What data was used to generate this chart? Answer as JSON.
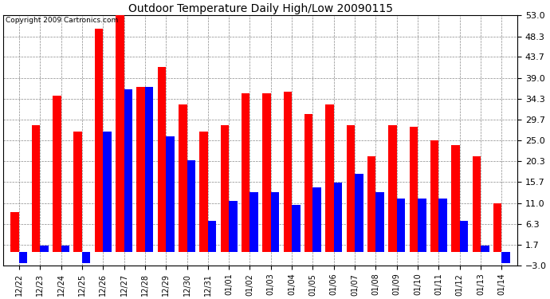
{
  "title": "Outdoor Temperature Daily High/Low 20090115",
  "copyright": "Copyright 2009 Cartronics.com",
  "dates": [
    "12/22",
    "12/23",
    "12/24",
    "12/25",
    "12/26",
    "12/27",
    "12/28",
    "12/29",
    "12/30",
    "12/31",
    "01/01",
    "01/02",
    "01/03",
    "01/04",
    "01/05",
    "01/06",
    "01/07",
    "01/08",
    "01/09",
    "01/10",
    "01/11",
    "01/12",
    "01/13",
    "01/14"
  ],
  "highs": [
    9.0,
    28.5,
    35.0,
    27.0,
    50.0,
    53.0,
    37.0,
    41.5,
    33.0,
    27.0,
    28.5,
    35.5,
    35.5,
    36.0,
    31.0,
    33.0,
    28.5,
    21.5,
    28.5,
    28.0,
    25.0,
    24.0,
    21.5,
    11.0
  ],
  "lows": [
    -2.5,
    1.5,
    1.5,
    -2.5,
    27.0,
    36.5,
    37.0,
    26.0,
    20.5,
    7.0,
    11.5,
    13.5,
    13.5,
    10.5,
    14.5,
    15.5,
    17.5,
    13.5,
    12.0,
    12.0,
    12.0,
    7.0,
    1.5,
    -2.5
  ],
  "high_color": "#ff0000",
  "low_color": "#0000ff",
  "bg_color": "#ffffff",
  "grid_color": "#888888",
  "yticks": [
    -3.0,
    1.7,
    6.3,
    11.0,
    15.7,
    20.3,
    25.0,
    29.7,
    34.3,
    39.0,
    43.7,
    48.3,
    53.0
  ],
  "ylim": [
    -5.0,
    55.0
  ],
  "ymin": -3.0,
  "ymax": 53.0,
  "bar_width": 0.4
}
